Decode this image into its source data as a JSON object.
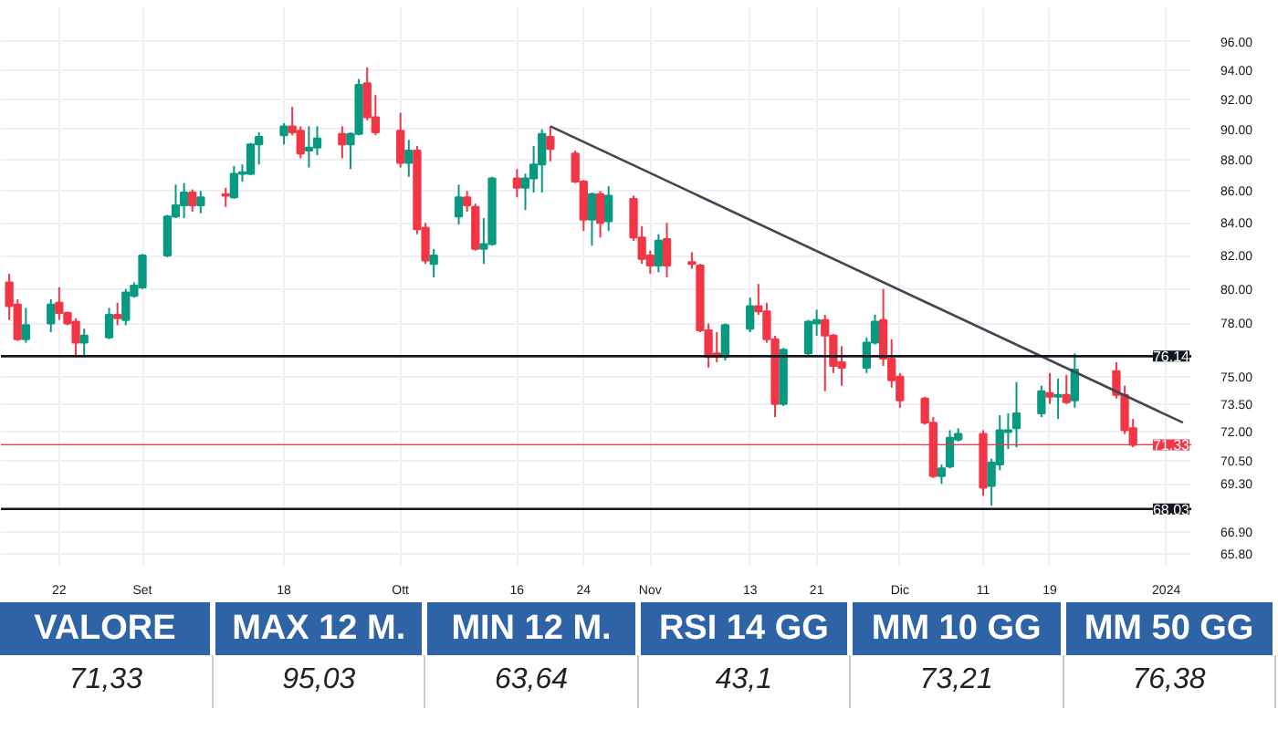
{
  "chart_data": {
    "type": "candlestick",
    "x": [
      "2023-08-16",
      "2023-08-17",
      "2023-08-18",
      "2023-08-21",
      "2023-08-22",
      "2023-08-23",
      "2023-08-24",
      "2023-08-25",
      "2023-08-28",
      "2023-08-29",
      "2023-08-30",
      "2023-08-31",
      "2023-09-01",
      "2023-09-04",
      "2023-09-05",
      "2023-09-06",
      "2023-09-07",
      "2023-09-08",
      "2023-09-11",
      "2023-09-12",
      "2023-09-13",
      "2023-09-14",
      "2023-09-15",
      "2023-09-18",
      "2023-09-19",
      "2023-09-20",
      "2023-09-21",
      "2023-09-22",
      "2023-09-25",
      "2023-09-26",
      "2023-09-27",
      "2023-09-28",
      "2023-09-29",
      "2023-10-02",
      "2023-10-03",
      "2023-10-04",
      "2023-10-05",
      "2023-10-06",
      "2023-10-09",
      "2023-10-10",
      "2023-10-11",
      "2023-10-12",
      "2023-10-13",
      "2023-10-16",
      "2023-10-17",
      "2023-10-18",
      "2023-10-19",
      "2023-10-20",
      "2023-10-23",
      "2023-10-24",
      "2023-10-25",
      "2023-10-26",
      "2023-10-27",
      "2023-10-30",
      "2023-10-31",
      "2023-11-01",
      "2023-11-02",
      "2023-11-03",
      "2023-11-06",
      "2023-11-07",
      "2023-11-08",
      "2023-11-09",
      "2023-11-10",
      "2023-11-13",
      "2023-11-14",
      "2023-11-15",
      "2023-11-16",
      "2023-11-17",
      "2023-11-20",
      "2023-11-21",
      "2023-11-22",
      "2023-11-23",
      "2023-11-24",
      "2023-11-27",
      "2023-11-28",
      "2023-11-29",
      "2023-11-30",
      "2023-12-01",
      "2023-12-04",
      "2023-12-05",
      "2023-12-06",
      "2023-12-07",
      "2023-12-08",
      "2023-12-11",
      "2023-12-12",
      "2023-12-13",
      "2023-12-14",
      "2023-12-15",
      "2023-12-18",
      "2023-12-19",
      "2023-12-20",
      "2023-12-21",
      "2023-12-22",
      "2023-12-27",
      "2023-12-28",
      "2023-12-29"
    ],
    "ohlc": [
      [
        80.4,
        80.9,
        78.2,
        79.0
      ],
      [
        79.1,
        79.4,
        77.0,
        77.1
      ],
      [
        77.1,
        78.9,
        76.9,
        77.9
      ],
      [
        78.0,
        79.4,
        77.5,
        79.1
      ],
      [
        79.2,
        80.1,
        78.2,
        78.6
      ],
      [
        78.6,
        78.7,
        77.9,
        78.0
      ],
      [
        78.1,
        78.3,
        76.1,
        76.9
      ],
      [
        76.9,
        77.7,
        76.1,
        77.3
      ],
      [
        77.2,
        78.9,
        77.1,
        78.5
      ],
      [
        78.5,
        79.2,
        77.9,
        78.3
      ],
      [
        78.2,
        80.0,
        77.9,
        79.8
      ],
      [
        79.6,
        80.4,
        79.5,
        80.2
      ],
      [
        80.1,
        82.1,
        80.0,
        82.0
      ],
      [
        82.0,
        84.5,
        81.9,
        84.4
      ],
      [
        84.4,
        86.4,
        84.3,
        85.1
      ],
      [
        85.1,
        86.5,
        84.3,
        85.9
      ],
      [
        85.9,
        86.1,
        84.7,
        85.1
      ],
      [
        85.1,
        86.0,
        84.6,
        85.6
      ],
      [
        85.8,
        86.2,
        85.0,
        85.7
      ],
      [
        85.6,
        87.6,
        85.5,
        87.1
      ],
      [
        87.1,
        87.7,
        86.6,
        87.2
      ],
      [
        87.1,
        89.1,
        87.0,
        89.0
      ],
      [
        89.0,
        89.8,
        87.7,
        89.5
      ],
      [
        89.6,
        90.4,
        89.0,
        90.2
      ],
      [
        90.2,
        91.5,
        89.6,
        89.8
      ],
      [
        89.9,
        90.2,
        88.1,
        88.4
      ],
      [
        88.6,
        90.2,
        87.5,
        88.8
      ],
      [
        88.8,
        90.2,
        88.3,
        89.4
      ],
      [
        89.7,
        90.2,
        88.1,
        89.0
      ],
      [
        89.0,
        89.8,
        87.4,
        89.7
      ],
      [
        89.7,
        93.4,
        89.6,
        93.0
      ],
      [
        93.1,
        94.2,
        90.6,
        90.8
      ],
      [
        90.8,
        92.3,
        89.6,
        89.8
      ],
      [
        89.9,
        91.1,
        87.5,
        87.8
      ],
      [
        87.8,
        89.3,
        86.9,
        88.6
      ],
      [
        88.6,
        88.9,
        83.3,
        83.6
      ],
      [
        83.7,
        84.0,
        81.5,
        81.7
      ],
      [
        81.5,
        82.4,
        80.7,
        82.0
      ],
      [
        84.4,
        86.4,
        83.9,
        85.6
      ],
      [
        85.6,
        86.0,
        84.7,
        85.1
      ],
      [
        85.0,
        85.2,
        82.3,
        82.4
      ],
      [
        82.4,
        84.3,
        81.5,
        82.7
      ],
      [
        82.7,
        86.9,
        82.6,
        86.8
      ],
      [
        86.8,
        87.4,
        85.6,
        86.2
      ],
      [
        86.2,
        87.1,
        84.8,
        86.8
      ],
      [
        86.8,
        88.9,
        85.9,
        87.7
      ],
      [
        87.7,
        90.0,
        85.9,
        89.7
      ],
      [
        89.5,
        90.2,
        87.9,
        88.7
      ],
      [
        88.4,
        88.6,
        86.5,
        86.6
      ],
      [
        86.6,
        86.7,
        83.5,
        84.2
      ],
      [
        84.2,
        85.9,
        82.6,
        85.8
      ],
      [
        85.8,
        86.0,
        83.1,
        84.0
      ],
      [
        84.1,
        86.3,
        83.5,
        85.7
      ],
      [
        85.5,
        85.7,
        82.9,
        83.1
      ],
      [
        83.1,
        83.8,
        81.5,
        81.8
      ],
      [
        82.0,
        82.3,
        80.9,
        81.4
      ],
      [
        81.4,
        83.3,
        81.0,
        82.9
      ],
      [
        83.0,
        84.0,
        80.7,
        81.4
      ],
      [
        81.6,
        82.2,
        81.2,
        81.5
      ],
      [
        81.4,
        81.5,
        77.5,
        77.6
      ],
      [
        77.6,
        78.0,
        75.5,
        76.1
      ],
      [
        76.3,
        77.5,
        75.8,
        76.1
      ],
      [
        76.1,
        78.0,
        75.9,
        77.9
      ],
      [
        77.7,
        79.5,
        77.5,
        79.0
      ],
      [
        79.0,
        80.3,
        78.5,
        78.7
      ],
      [
        78.7,
        79.2,
        76.9,
        77.1
      ],
      [
        77.1,
        77.3,
        72.8,
        73.5
      ],
      [
        73.5,
        76.6,
        73.4,
        76.5
      ],
      [
        76.3,
        78.2,
        76.2,
        78.1
      ],
      [
        78.0,
        78.8,
        77.3,
        78.2
      ],
      [
        78.2,
        78.5,
        74.2,
        77.3
      ],
      [
        77.3,
        77.4,
        75.2,
        75.6
      ],
      [
        75.8,
        76.7,
        74.5,
        75.5
      ],
      [
        75.5,
        77.2,
        75.2,
        76.9
      ],
      [
        76.9,
        78.5,
        76.8,
        78.1
      ],
      [
        78.2,
        80.0,
        75.6,
        76.0
      ],
      [
        76.0,
        77.1,
        74.4,
        74.8
      ],
      [
        75.0,
        75.2,
        73.3,
        73.7
      ],
      [
        73.8,
        73.9,
        72.4,
        72.5
      ],
      [
        72.5,
        72.8,
        69.6,
        69.7
      ],
      [
        69.7,
        70.3,
        69.3,
        70.1
      ],
      [
        70.2,
        72.1,
        70.1,
        71.7
      ],
      [
        71.6,
        72.2,
        71.5,
        71.9
      ],
      [
        71.9,
        72.1,
        68.7,
        69.1
      ],
      [
        69.2,
        70.6,
        68.2,
        70.4
      ],
      [
        70.3,
        72.9,
        70.0,
        72.1
      ],
      [
        72.0,
        73.0,
        71.1,
        72.1
      ],
      [
        72.2,
        74.7,
        71.2,
        73.0
      ],
      [
        73.0,
        74.5,
        72.8,
        74.2
      ],
      [
        74.1,
        75.2,
        73.5,
        73.9
      ],
      [
        73.9,
        74.9,
        72.7,
        74.0
      ],
      [
        74.0,
        75.1,
        73.5,
        73.6
      ],
      [
        73.7,
        76.3,
        73.3,
        75.4
      ],
      [
        75.3,
        75.8,
        73.8,
        74.0
      ],
      [
        74.0,
        74.5,
        71.9,
        72.1
      ],
      [
        72.2,
        72.7,
        71.2,
        71.33
      ]
    ],
    "colors": [
      "#f23645",
      "#f23645",
      "#089981",
      "#089981",
      "#f23645",
      "#f23645",
      "#f23645",
      "#089981",
      "#089981",
      "#f23645",
      "#089981",
      "#089981",
      "#089981",
      "#089981",
      "#089981",
      "#089981",
      "#f23645",
      "#089981",
      "#f23645",
      "#089981",
      "#089981",
      "#089981",
      "#089981",
      "#089981",
      "#f23645",
      "#f23645",
      "#089981",
      "#089981",
      "#f23645",
      "#089981",
      "#089981",
      "#f23645",
      "#f23645",
      "#f23645",
      "#089981",
      "#f23645",
      "#f23645",
      "#089981",
      "#089981",
      "#f23645",
      "#f23645",
      "#089981",
      "#089981",
      "#f23645",
      "#089981",
      "#089981",
      "#089981",
      "#f23645",
      "#f23645",
      "#f23645",
      "#089981",
      "#f23645",
      "#089981",
      "#f23645",
      "#f23645",
      "#f23645",
      "#089981",
      "#f23645",
      "#f23645",
      "#f23645",
      "#f23645",
      "#f23645",
      "#089981",
      "#089981",
      "#f23645",
      "#f23645",
      "#f23645",
      "#089981",
      "#089981",
      "#089981",
      "#f23645",
      "#f23645",
      "#f23645",
      "#089981",
      "#089981",
      "#f23645",
      "#f23645",
      "#f23645",
      "#f23645",
      "#f23645",
      "#089981",
      "#089981",
      "#089981",
      "#f23645",
      "#089981",
      "#089981",
      "#089981",
      "#089981",
      "#089981",
      "#f23645",
      "#089981",
      "#f23645",
      "#089981",
      "#f23645",
      "#f23645",
      "#f23645"
    ],
    "series": [
      {
        "type": "line",
        "color": "#434651",
        "x": [
          "2023-10-20",
          "2024-01-04"
        ],
        "values": [
          90.2,
          72.5
        ]
      }
    ],
    "ref_lines": [
      {
        "axis": "y",
        "value": 76.14,
        "label": "76.14",
        "color": "#131722"
      },
      {
        "axis": "y",
        "value": 71.33,
        "label": "71.33",
        "color": "#f23645"
      },
      {
        "axis": "y",
        "value": 68.03,
        "label": "68.03",
        "color": "#131722"
      }
    ],
    "log": "y",
    "xlim": [
      "2023-08-15",
      "2024-01-05"
    ],
    "xticks": [
      {
        "value": "2023-08-22",
        "label": "22"
      },
      {
        "value": "2023-09-01",
        "label": "Set"
      },
      {
        "value": "2023-09-18",
        "label": "18"
      },
      {
        "value": "2023-10-02",
        "label": "Ott"
      },
      {
        "value": "2023-10-16",
        "label": "16"
      },
      {
        "value": "2023-10-24",
        "label": "24"
      },
      {
        "value": "2023-11-01",
        "label": "Nov"
      },
      {
        "value": "2023-11-13",
        "label": "13"
      },
      {
        "value": "2023-11-21",
        "label": "21"
      },
      {
        "value": "2023-12-01",
        "label": "Dic"
      },
      {
        "value": "2023-12-11",
        "label": "11"
      },
      {
        "value": "2023-12-19",
        "label": "19"
      },
      {
        "value": "2024-01-02",
        "label": "2024"
      }
    ],
    "ylim": [
      65.2,
      98.4
    ],
    "yticks": [
      {
        "value": 96,
        "label": "96.00"
      },
      {
        "value": 94,
        "label": "94.00"
      },
      {
        "value": 92,
        "label": "92.00"
      },
      {
        "value": 90,
        "label": "90.00"
      },
      {
        "value": 88,
        "label": "88.00"
      },
      {
        "value": 86,
        "label": "86.00"
      },
      {
        "value": 84,
        "label": "84.00"
      },
      {
        "value": 82,
        "label": "82.00"
      },
      {
        "value": 80,
        "label": "80.00"
      },
      {
        "value": 78,
        "label": "78.00"
      },
      {
        "value": 75,
        "label": "75.00"
      },
      {
        "value": 73.5,
        "label": "73.50"
      },
      {
        "value": 72,
        "label": "72.00"
      },
      {
        "value": 70.5,
        "label": "70.50"
      },
      {
        "value": 69.3,
        "label": "69.30"
      },
      {
        "value": 66.9,
        "label": "66.90"
      },
      {
        "value": 65.8,
        "label": "65.80"
      }
    ],
    "grid": true,
    "annotations": [
      "VALORE",
      "MAX 12 M.",
      "MIN 12 M.",
      "RSI 14 GG",
      "MM 10 GG",
      "MM 50 GG",
      "71,33",
      "95,03",
      "63,64",
      "43,1",
      "73,21",
      "76,38"
    ]
  }
}
